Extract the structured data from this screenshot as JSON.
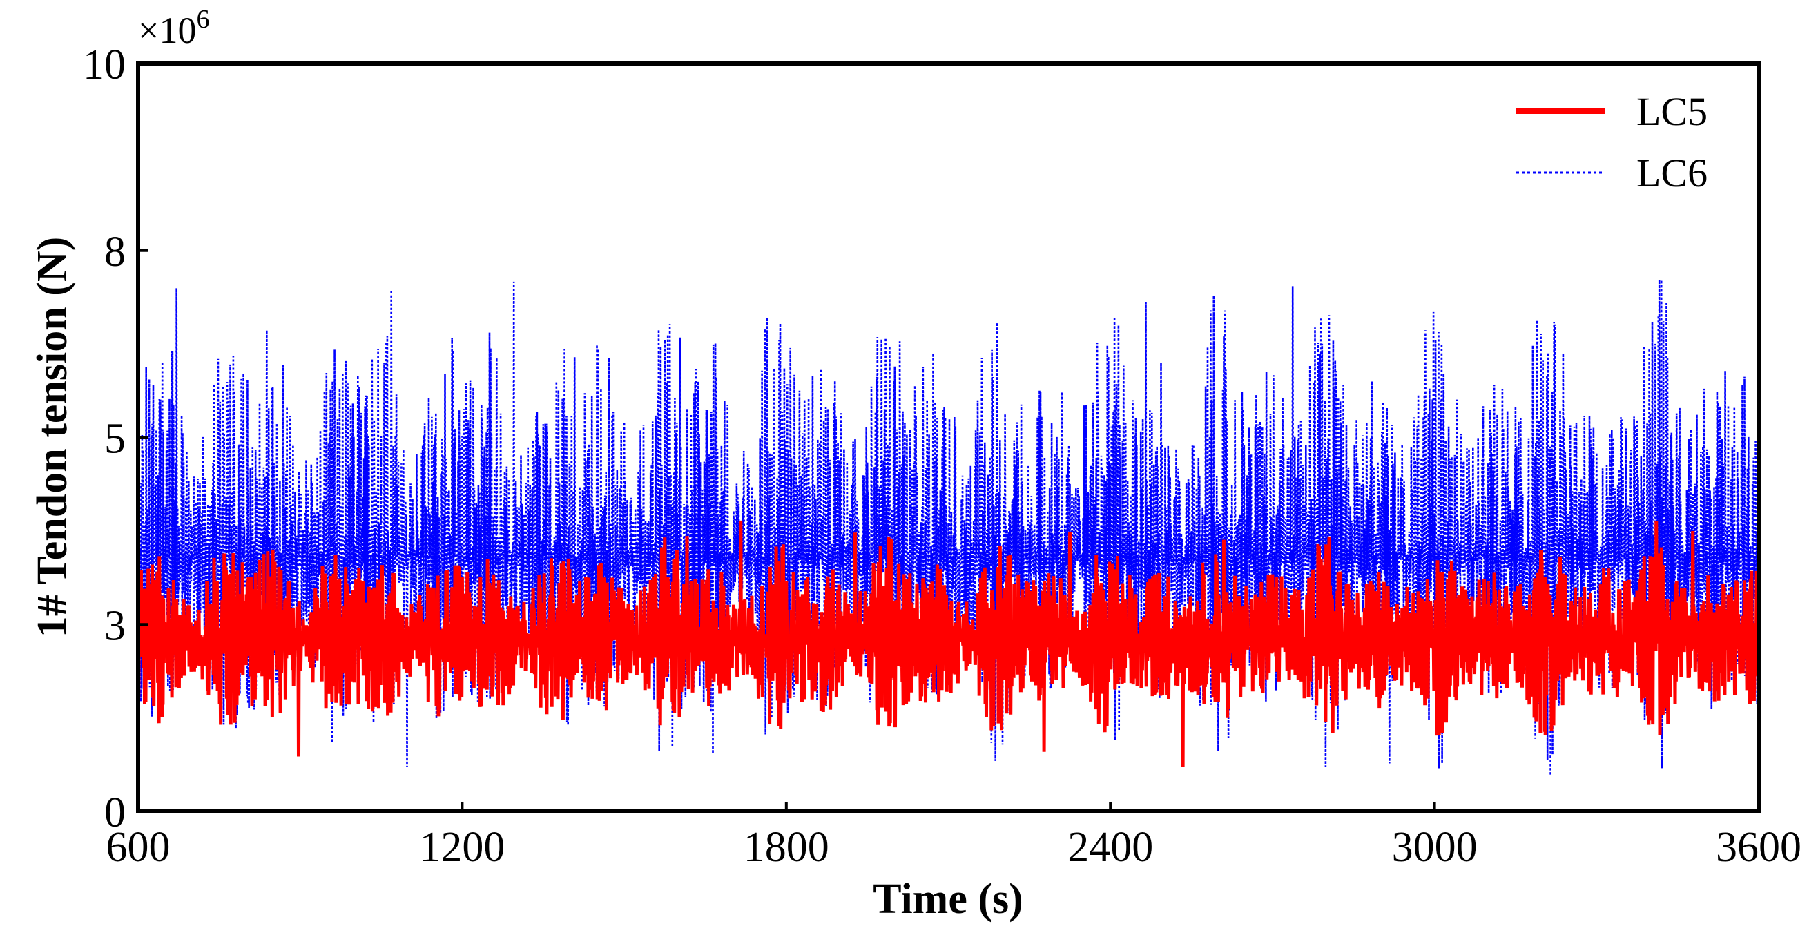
{
  "chart_data": {
    "type": "line",
    "title": "",
    "xlabel": "Time (s)",
    "ylabel": "1# Tendon tension (N)",
    "y_multiplier_base": "×10",
    "y_multiplier_exp": "6",
    "xlim": [
      600,
      3600
    ],
    "ylim": [
      0,
      10
    ],
    "x_ticks": [
      600,
      1200,
      1800,
      2400,
      3000,
      3600
    ],
    "x_tick_labels": [
      "600",
      "1200",
      "1800",
      "2400",
      "3000",
      "3600"
    ],
    "y_ticks": [
      0,
      2.5,
      5,
      7.5,
      10
    ],
    "y_tick_labels": [
      "0",
      "3",
      "5",
      "8",
      "10"
    ],
    "grid": false,
    "legend_position": "top-right",
    "series": [
      {
        "name": "LC5",
        "color": "#ff0000",
        "style": "solid",
        "mean": 2.3,
        "typical_min": 1.2,
        "typical_max": 3.5,
        "min_value": 0.3,
        "max_value": 3.9
      },
      {
        "name": "LC6",
        "color": "#0000ff",
        "style": "dotted",
        "mean": 3.4,
        "typical_min": 1.3,
        "typical_max": 6.2,
        "min_value": 0.3,
        "max_value": 7.2
      }
    ]
  }
}
